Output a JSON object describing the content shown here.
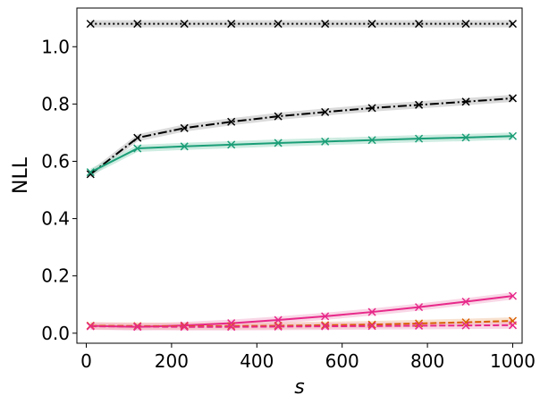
{
  "chart_data": {
    "type": "line",
    "xlabel": "s",
    "ylabel": "NLL",
    "xlim": [
      -22,
      1022
    ],
    "ylim": [
      -0.035,
      1.135
    ],
    "xticks": [
      0,
      200,
      400,
      600,
      800,
      1000
    ],
    "yticks": [
      0.0,
      0.2,
      0.4,
      0.6,
      0.8,
      1.0
    ],
    "xtick_labels": [
      "0",
      "200",
      "400",
      "600",
      "800",
      "1000"
    ],
    "ytick_labels": [
      "0.0",
      "0.2",
      "0.4",
      "0.6",
      "0.8",
      "1.0"
    ],
    "x": [
      10,
      120,
      230,
      340,
      450,
      560,
      670,
      780,
      890,
      1000
    ],
    "series": [
      {
        "color": "#000000",
        "dash": "dot",
        "marker": "x",
        "band": "#bdbdbd",
        "values": [
          1.08,
          1.08,
          1.08,
          1.08,
          1.08,
          1.08,
          1.08,
          1.08,
          1.08,
          1.08
        ]
      },
      {
        "color": "#000000",
        "dash": "dashdot",
        "marker": "x",
        "band": "#bdbdbd",
        "values": [
          0.555,
          0.682,
          0.716,
          0.738,
          0.757,
          0.772,
          0.786,
          0.797,
          0.808,
          0.82
        ]
      },
      {
        "color": "#1b9e77",
        "dash": "solid",
        "marker": "x",
        "band": "#a6dcc8",
        "values": [
          0.562,
          0.645,
          0.652,
          0.658,
          0.664,
          0.669,
          0.674,
          0.679,
          0.683,
          0.688
        ]
      },
      {
        "color": "#e7298a",
        "dash": "solid",
        "marker": "x",
        "band": "#f4b6d2",
        "values": [
          0.026,
          0.022,
          0.027,
          0.035,
          0.046,
          0.059,
          0.074,
          0.091,
          0.11,
          0.13
        ]
      },
      {
        "color": "#d95f02",
        "dash": "dashed",
        "marker": "x",
        "band": "#f3c9a8",
        "values": [
          0.026,
          0.025,
          0.024,
          0.025,
          0.026,
          0.028,
          0.03,
          0.034,
          0.038,
          0.043
        ]
      },
      {
        "color": "#e7298a",
        "dash": "dashed",
        "marker": "x",
        "band": "#f4b6d2",
        "values": [
          0.024,
          0.023,
          0.022,
          0.022,
          0.023,
          0.024,
          0.025,
          0.026,
          0.027,
          0.028
        ]
      }
    ]
  }
}
